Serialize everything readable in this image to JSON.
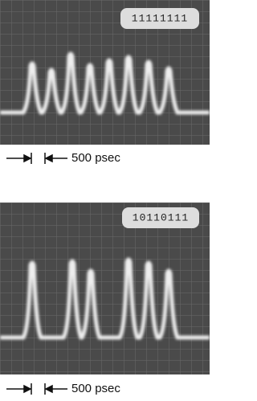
{
  "panels": [
    {
      "pattern": "11111111",
      "scale": "500 psec"
    },
    {
      "pattern": "10110111",
      "scale": "500 psec"
    }
  ]
}
